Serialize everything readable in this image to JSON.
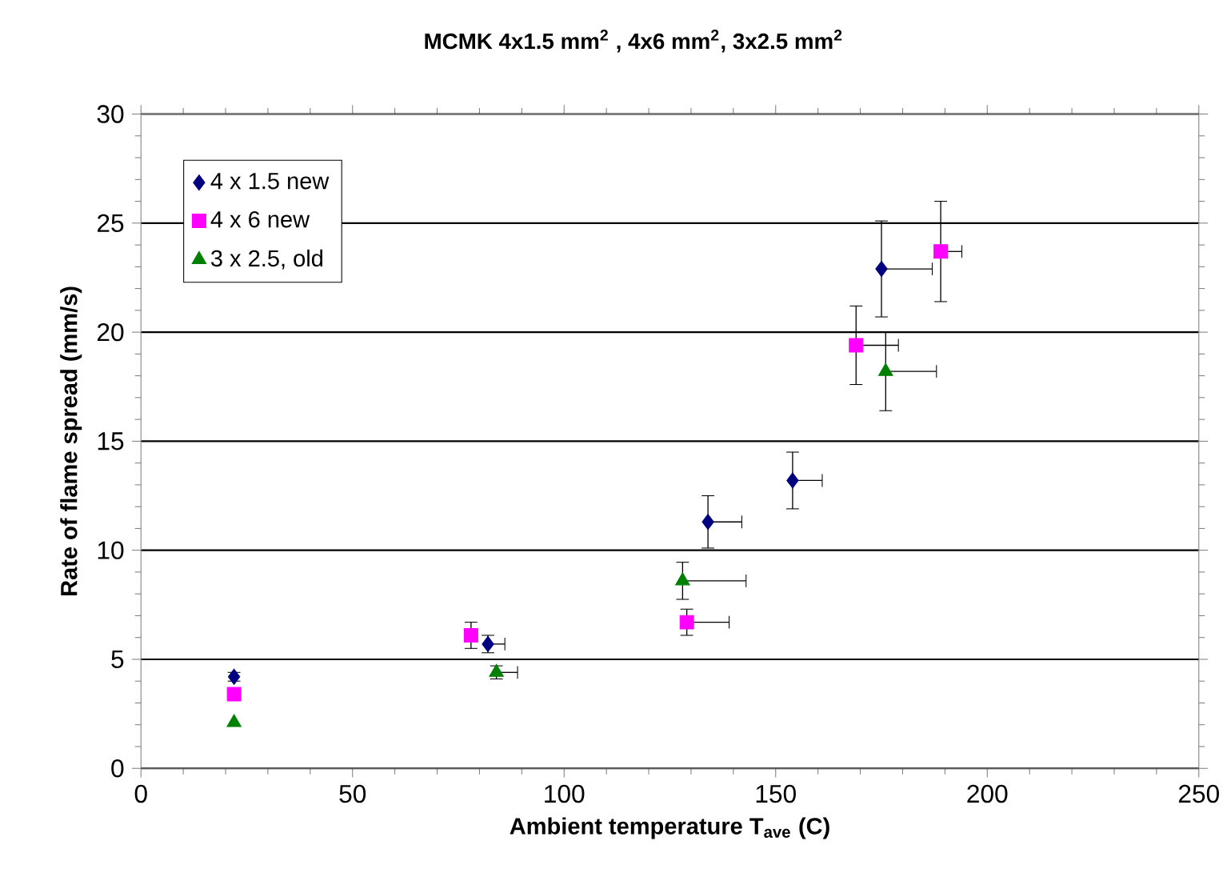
{
  "chart_data": {
    "type": "scatter",
    "title": "MCMK 4x1.5 mm$^{2}$ , 4x6  mm$^{2}$, 3x2.5 mm$^{2}$",
    "xlabel": "Ambient temperature T$_{ave}$ (C)",
    "ylabel": "Rate of flame spread (mm/s)",
    "xlim": [
      0,
      250
    ],
    "xticks": [
      0,
      50,
      100,
      150,
      200,
      250
    ],
    "ylim": [
      0,
      30
    ],
    "yticks": [
      0,
      5,
      10,
      15,
      20,
      25,
      30
    ],
    "grid": "y",
    "legend": "top left",
    "series": [
      {
        "name": "4 x 1.5 new",
        "color": "#000080",
        "marker": "diamond",
        "x": [
          22,
          82,
          134,
          154,
          175
        ],
        "values": [
          4.2,
          5.7,
          11.3,
          13.2,
          22.9
        ],
        "errors": [
          0.2,
          0.4,
          1.2,
          1.3,
          2.2
        ],
        "xerrors": [
          null,
          [
            82,
            86
          ],
          [
            134,
            142
          ],
          [
            154,
            161
          ],
          [
            175,
            187
          ]
        ]
      },
      {
        "name": "4 x 6 new",
        "color": "#ff00ff",
        "marker": "square",
        "x": [
          22,
          78,
          129,
          169,
          189
        ],
        "values": [
          3.4,
          6.1,
          6.7,
          19.4,
          23.7
        ],
        "errors": [
          null,
          0.6,
          0.6,
          1.8,
          2.3
        ],
        "xerrors": [
          null,
          null,
          [
            129,
            139
          ],
          [
            169,
            179
          ],
          [
            189,
            194
          ]
        ]
      },
      {
        "name": "3 x 2.5, old",
        "color": "#008000",
        "marker": "triangle",
        "x": [
          22,
          84,
          128,
          176
        ],
        "values": [
          2.1,
          4.4,
          8.6,
          18.2
        ],
        "errors": [
          null,
          0.3,
          0.85,
          1.8
        ],
        "xerrors": [
          null,
          [
            84,
            89
          ],
          [
            128,
            143
          ],
          [
            176,
            188
          ]
        ]
      }
    ]
  }
}
